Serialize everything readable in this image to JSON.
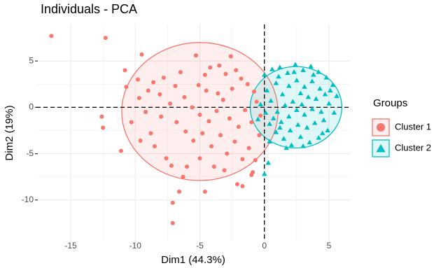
{
  "chart_data": {
    "type": "scatter",
    "title": "Individuals - PCA",
    "x_label": "Dim1 (44.3%)",
    "y_label": "Dim2 (19%)",
    "legend_title": "Groups",
    "legend_position": "right",
    "grid": true,
    "xlim": [
      -17.66,
      6.63
    ],
    "ylim": [
      -14.47,
      8.94
    ],
    "xticks": [
      -15,
      -10,
      -5,
      0,
      5
    ],
    "yticks": [
      -10,
      -5,
      0,
      5
    ],
    "vline": 0,
    "hline": 0,
    "series": [
      {
        "name": "Cluster 1",
        "color": "#F8766D",
        "marker": "circle",
        "ellipse": {
          "cx": -5.0,
          "cy": -0.45,
          "rx": 6.05,
          "ry": 7.45
        },
        "x": [
          -16.5,
          -12.3,
          -12.6,
          -12.5,
          -11.1,
          -7.1,
          -7.1,
          -6.6,
          -6.3,
          -4.6,
          -2.1,
          -1.7,
          -1.0,
          -9.5,
          -10.8,
          -10.7,
          -9.8,
          -9.7,
          -9.0,
          -8.6,
          -8.1,
          -10.3,
          -9.2,
          -8.8,
          -8.5,
          -7.6,
          -7.2,
          -6.0,
          -5.3,
          -5.1,
          -4.6,
          -4.2,
          -3.5,
          -3.0,
          -2.6,
          -2.2,
          -1.8,
          -1.3,
          -0.8,
          -6.5,
          -6.9,
          -7.3,
          -6.2,
          -5.6,
          -5.0,
          -4.3,
          -3.7,
          -3.2,
          -2.7,
          -2.0,
          -1.5,
          -1.0,
          -0.6,
          -0.3,
          -6.8,
          -6.1,
          -5.5,
          -4.8,
          -4.1,
          -3.4,
          -2.9,
          -2.3,
          -1.7,
          -1.2,
          -0.7,
          -0.4,
          -3.9,
          -3.1,
          -5.0,
          -0.9,
          -4.5,
          -3.6,
          -2.5,
          -7.8,
          -8.0,
          -9.6
        ],
        "y": [
          7.7,
          7.5,
          -1.0,
          -2.2,
          -4.7,
          -10.3,
          -12.5,
          -9.1,
          -7.5,
          -9.1,
          -8.3,
          -8.5,
          -7.3,
          5.7,
          4.0,
          2.2,
          3.0,
          1.0,
          1.8,
          2.7,
          1.4,
          -1.6,
          -0.5,
          -2.8,
          -4.2,
          -5.5,
          -6.3,
          -6.4,
          5.6,
          2.4,
          3.5,
          4.3,
          4.5,
          3.6,
          5.5,
          4.0,
          3.1,
          2.5,
          1.7,
          3.8,
          2.3,
          0.4,
          1.1,
          0.0,
          -0.8,
          -1.5,
          -0.4,
          0.8,
          -1.2,
          -2.1,
          -0.3,
          -1.6,
          0.6,
          -0.9,
          -1.6,
          -2.6,
          -3.6,
          -2.8,
          -4.2,
          -3.0,
          -5.0,
          -3.7,
          -5.6,
          -4.4,
          -5.7,
          -3.0,
          -6.4,
          -6.8,
          -5.5,
          -7.0,
          1.8,
          1.5,
          2.0,
          3.2,
          -1.0,
          -3.6
        ]
      },
      {
        "name": "Cluster 2",
        "color": "#00BFC4",
        "marker": "triangle",
        "ellipse": {
          "cx": 2.45,
          "cy": 0.0,
          "rx": 3.55,
          "ry": 4.4
        },
        "x": [
          0.0,
          0.3,
          0.0,
          0.6,
          1.2,
          1.8,
          2.4,
          3.0,
          3.6,
          4.2,
          4.8,
          5.3,
          5.6,
          5.0,
          5.4,
          4.6,
          4.9,
          4.2,
          3.5,
          2.8,
          2.1,
          1.5,
          0.9,
          0.4,
          0.1,
          0.5,
          0.2,
          0.9,
          1.4,
          1.9,
          2.5,
          3.1,
          3.7,
          4.3,
          4.0,
          3.4,
          2.8,
          2.2,
          1.6,
          1.0,
          0.7,
          1.3,
          1.9,
          2.5,
          3.1,
          3.7,
          4.4,
          3.9,
          3.3,
          2.6,
          2.0,
          1.2,
          2.9,
          4.7,
          3.8,
          1.1,
          -0.3,
          -0.5,
          0.4,
          2.3,
          4.5,
          5.1,
          1.7,
          3.0
        ],
        "y": [
          -7.2,
          -6.0,
          3.5,
          4.1,
          4.3,
          3.7,
          4.6,
          4.0,
          4.4,
          3.8,
          3.2,
          2.4,
          1.2,
          0.4,
          -0.6,
          -1.4,
          -2.5,
          -3.3,
          -3.8,
          -3.2,
          -4.1,
          -3.4,
          -2.7,
          -1.8,
          -0.6,
          0.7,
          1.8,
          2.6,
          1.4,
          2.3,
          2.9,
          2.2,
          2.8,
          2.0,
          0.9,
          1.1,
          1.5,
          0.6,
          0.2,
          -0.5,
          -1.2,
          -1.6,
          -1.0,
          -0.3,
          -0.8,
          -0.2,
          -0.5,
          -1.7,
          -2.2,
          -1.9,
          -2.5,
          -2.2,
          0.3,
          1.4,
          3.5,
          3.3,
          0.3,
          -1.3,
          -3.7,
          3.8,
          -2.8,
          1.8,
          -4.4,
          -4.2
        ]
      }
    ]
  }
}
